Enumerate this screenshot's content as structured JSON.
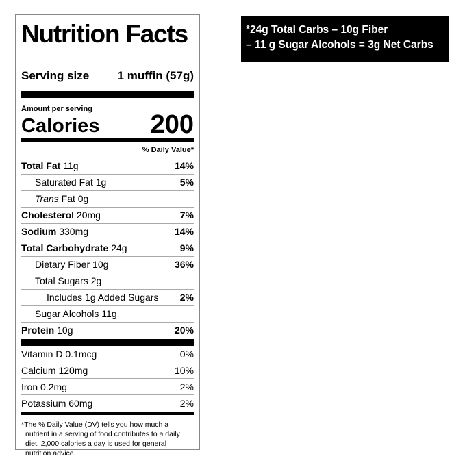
{
  "label": {
    "title": "Nutrition Facts",
    "serving_size_label": "Serving size",
    "serving_size_value": "1 muffin (57g)",
    "amount_per_serving": "Amount per serving",
    "calories_label": "Calories",
    "calories_value": "200",
    "daily_value_header": "% Daily Value*",
    "nutrients": [
      {
        "name": "Total Fat",
        "amount": "11g",
        "dv": "14%"
      },
      {
        "name": "Saturated Fat",
        "amount": "1g",
        "dv": "5%"
      },
      {
        "name": "Trans",
        "name2": "Fat",
        "amount": "0g",
        "dv": ""
      },
      {
        "name": "Cholesterol",
        "amount": "20mg",
        "dv": "7%"
      },
      {
        "name": "Sodium",
        "amount": "330mg",
        "dv": "14%"
      },
      {
        "name": "Total Carbohydrate",
        "amount": "24g",
        "dv": "9%"
      },
      {
        "name": "Dietary Fiber",
        "amount": "10g",
        "dv": "36%"
      },
      {
        "name": "Total Sugars",
        "amount": "2g",
        "dv": ""
      },
      {
        "name": "Includes 1g Added Sugars",
        "amount": "",
        "dv": "2%"
      },
      {
        "name": "Sugar Alcohols",
        "amount": "11g",
        "dv": ""
      },
      {
        "name": "Protein",
        "amount": "10g",
        "dv": "20%"
      }
    ],
    "vitamins": [
      {
        "name": "Vitamin D 0.1mcg",
        "dv": "0%"
      },
      {
        "name": "Calcium 120mg",
        "dv": "10%"
      },
      {
        "name": "Iron 0.2mg",
        "dv": "2%"
      },
      {
        "name": "Potassium 60mg",
        "dv": "2%"
      }
    ],
    "footnote": "*The % Daily Value (DV) tells you how much a nutrient in a serving of food contributes to a daily diet. 2,000 calories a day is used for general nutrition advice."
  },
  "net_carbs_note": {
    "line1": "*24g Total Carbs – 10g Fiber",
    "line2": "– 11 g Sugar Alcohols = 3g Net Carbs"
  }
}
